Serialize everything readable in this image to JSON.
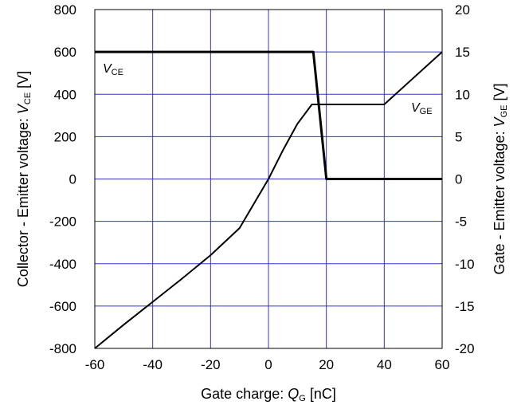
{
  "chart_data": {
    "type": "line",
    "xlabel": {
      "prefix": "Gate charge: ",
      "symbol": "Q",
      "subscript": "G",
      "suffix": " [nC]"
    },
    "ylabel_left": {
      "prefix": "Collector - Emitter voltage: ",
      "symbol": "V",
      "subscript": "CE",
      "suffix": " [V]"
    },
    "ylabel_right": {
      "prefix": "Gate - Emitter voltage: ",
      "symbol": "V",
      "subscript": "GE",
      "suffix": " [V]"
    },
    "xlim": [
      -60,
      60
    ],
    "ylim_left": [
      -800,
      800
    ],
    "ylim_right": [
      -20,
      20
    ],
    "x_ticks": [
      "-60",
      "-40",
      "-20",
      "0",
      "20",
      "40",
      "60"
    ],
    "y_ticks_left": [
      "800",
      "600",
      "400",
      "200",
      "0",
      "-200",
      "-400",
      "-600",
      "-800"
    ],
    "y_ticks_right": [
      "20",
      "15",
      "10",
      "5",
      "0",
      "-5",
      "-10",
      "-15",
      "-20"
    ],
    "grid": true,
    "grid_color": "#3333cc",
    "line_color": "#000000",
    "series": [
      {
        "name": "VCE",
        "label": {
          "symbol": "V",
          "subscript": "CE"
        },
        "axis": "left",
        "x": [
          -60,
          15.5,
          20,
          60
        ],
        "y": [
          600,
          600,
          0,
          0
        ]
      },
      {
        "name": "VGE",
        "label": {
          "symbol": "V",
          "subscript": "GE"
        },
        "axis": "right",
        "x": [
          -60,
          -50,
          -40,
          -30,
          -20,
          -10,
          0,
          5,
          10,
          15,
          40,
          60
        ],
        "y": [
          -20,
          -17.2,
          -14.5,
          -11.8,
          -9,
          -5.8,
          0,
          3.4,
          6.5,
          8.8,
          8.8,
          15
        ]
      }
    ]
  }
}
